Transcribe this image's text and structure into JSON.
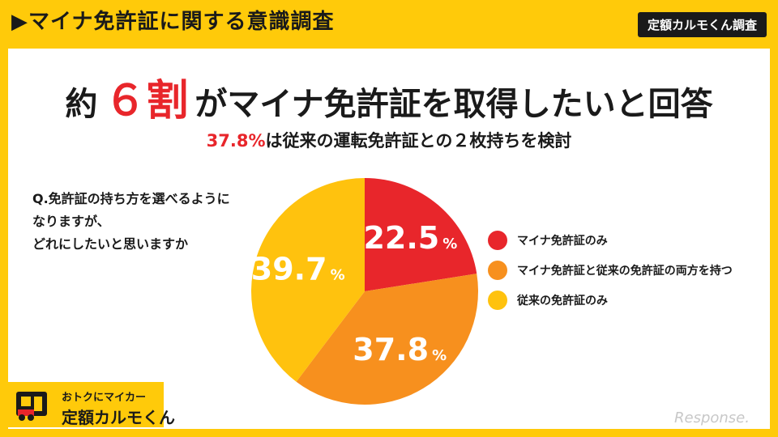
{
  "header": {
    "title": "▶マイナ免許証に関する意識調査",
    "badge": "定額カルモくん調査"
  },
  "headline": {
    "prefix": "約",
    "big": "６割",
    "suffix": "がマイナ免許証を取得したいと回答"
  },
  "subline": {
    "red": "37.8%",
    "rest": "は従来の運転免許証との２枚持ちを検討"
  },
  "question": {
    "lines": [
      "Q.免許証の持ち方を選べるように",
      "なりますが、",
      "どれにしたいと思いますか"
    ]
  },
  "chart_data": {
    "type": "pie",
    "categories": [
      "マイナ免許証のみ",
      "マイナ免許証と従来の免許証の両方を持つ",
      "従来の免許証のみ"
    ],
    "values": [
      22.5,
      37.8,
      39.7
    ],
    "unit": "%",
    "colors": [
      "#E8262B",
      "#F7901E",
      "#FFC20E"
    ],
    "legend_position": "right"
  },
  "logo": {
    "line1": "おトクにマイカー",
    "line2": "定額カルモくん",
    "icon": "car-logo-icon"
  },
  "watermark": "Response."
}
